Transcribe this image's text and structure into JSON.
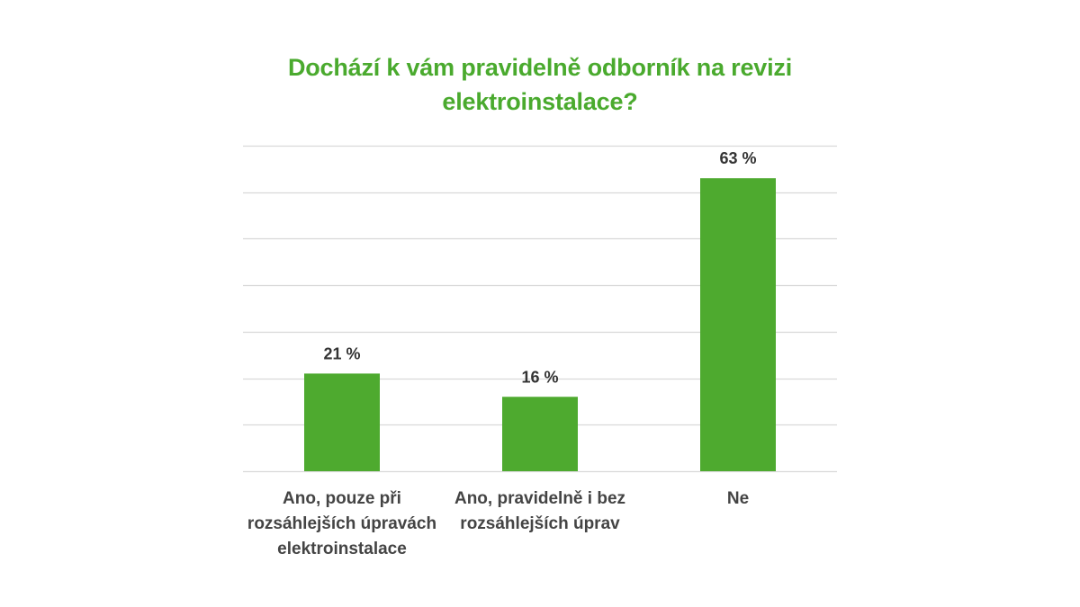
{
  "chart_data": {
    "type": "bar",
    "title": "Dochází k vám pravidelně odborník na revizi elektroinstalace?",
    "categories": [
      "Ano, pouze při rozsáhlejších úpravách elektroinstalace",
      "Ano, pravidelně i bez rozsáhlejších úprav",
      "Ne"
    ],
    "category_lines": [
      [
        "Ano, pouze při",
        "rozsáhlejších úpravách",
        "elektroinstalace"
      ],
      [
        "Ano, pravidelně i bez",
        "rozsáhlejších úprav"
      ],
      [
        "Ne"
      ]
    ],
    "values": [
      21,
      16,
      63
    ],
    "data_labels": [
      "21 %",
      "16 %",
      "63 %"
    ],
    "ylim": [
      0,
      70
    ],
    "grid": true,
    "gridline_count": 7,
    "y_axis_labels_shown": false,
    "legend": "none",
    "xlabel": "",
    "ylabel": "",
    "colors": {
      "bar": "#4eaa2f",
      "title": "#4aaa2e",
      "gridline": "#d9d9d9",
      "axis_text": "#444444"
    }
  }
}
